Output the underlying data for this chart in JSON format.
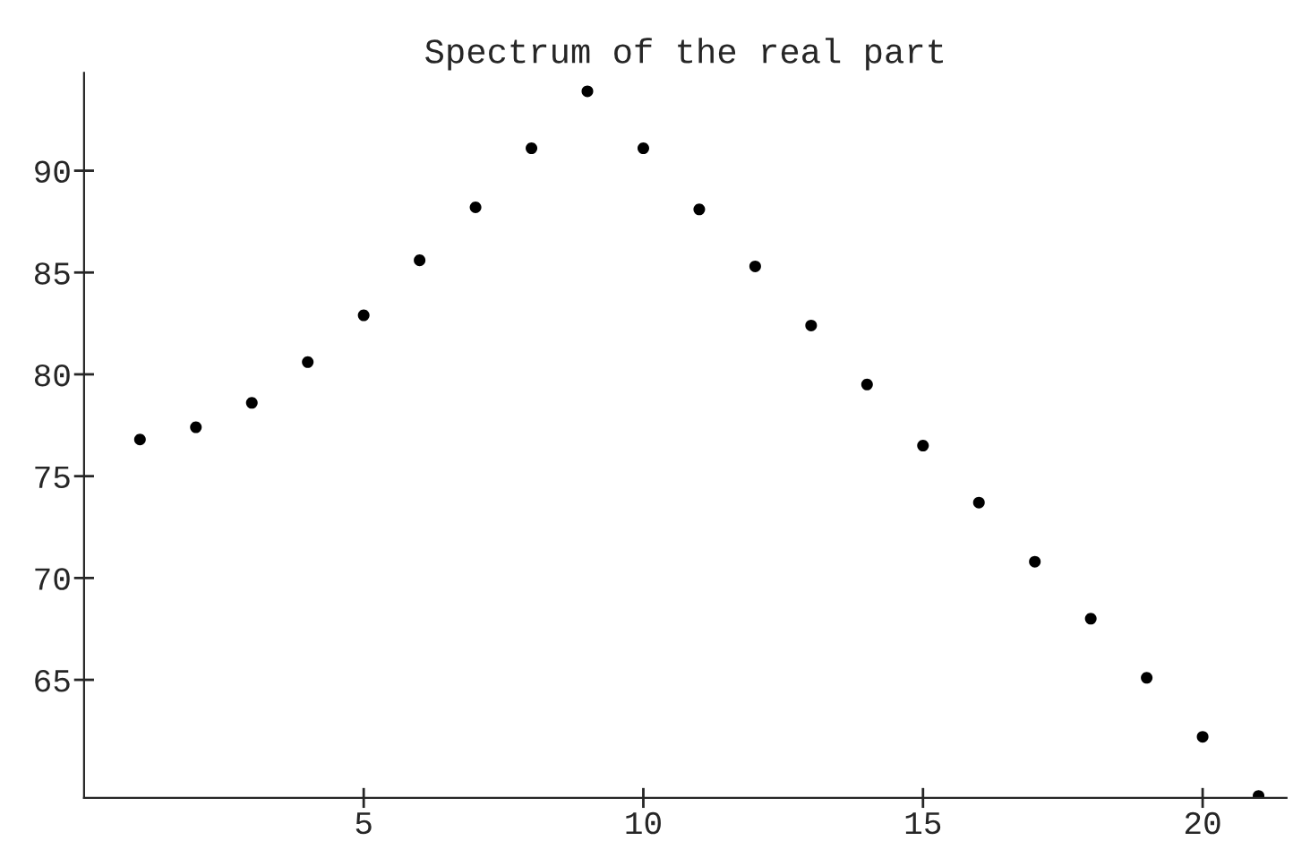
{
  "chart_data": {
    "type": "scatter",
    "title": "Spectrum of the real part",
    "x": [
      1,
      2,
      3,
      4,
      5,
      6,
      7,
      8,
      9,
      10,
      11,
      12,
      13,
      14,
      15,
      16,
      17,
      18,
      19,
      20,
      21
    ],
    "series": [
      {
        "color": "#000000",
        "values": [
          76.8,
          77.4,
          78.6,
          80.6,
          82.9,
          85.6,
          88.2,
          91.1,
          93.9,
          91.1,
          88.1,
          85.3,
          82.4,
          79.5,
          76.5,
          73.7,
          70.8,
          68.0,
          65.1,
          62.2,
          59.3
        ]
      }
    ],
    "xlim": [
      0,
      21.5
    ],
    "ylim": [
      59.2,
      94.8
    ],
    "xticks": [
      5,
      10,
      15,
      20
    ],
    "yticks": [
      65,
      70,
      75,
      80,
      85,
      90
    ],
    "grid": false,
    "legend": false,
    "marker": "circle"
  }
}
